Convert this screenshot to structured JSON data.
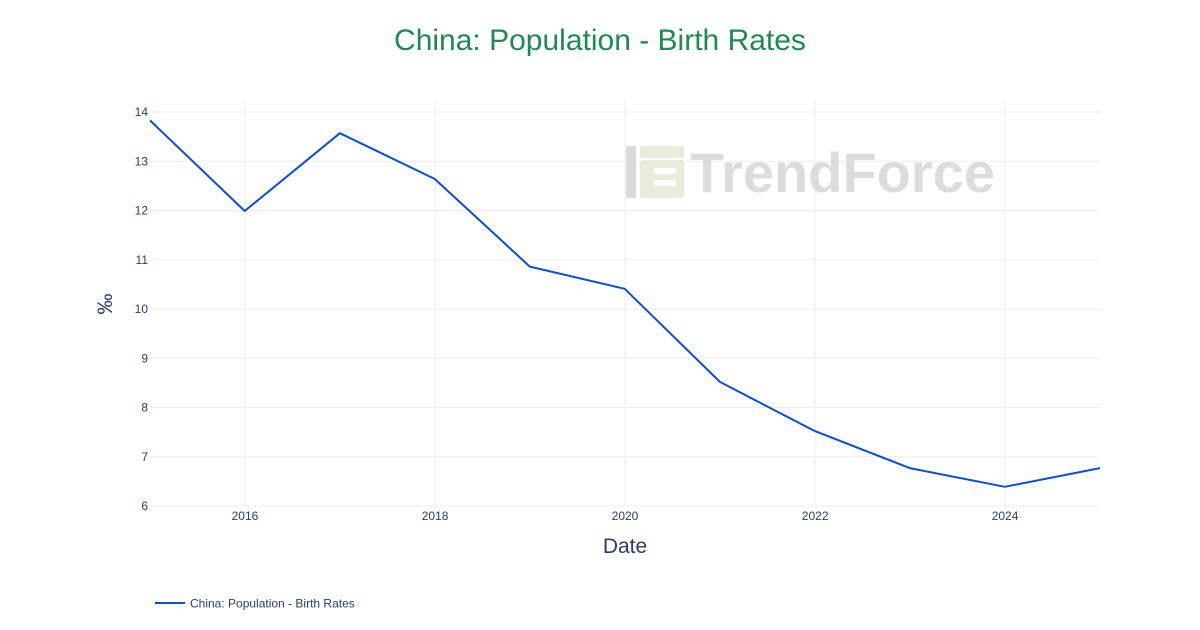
{
  "colors": {
    "title": "#1e8a4f",
    "line": "#0b4fd1",
    "axis_text": "#2a3f5f",
    "grid": "#eeeeee",
    "watermark_text": "#d9d9d9",
    "watermark_mark_light": "#e6ebd6",
    "watermark_mark_dark": "#d6d6d6"
  },
  "watermark": {
    "text": "TrendForce",
    "icon": "trendforce-logo-icon"
  },
  "chart_data": {
    "type": "line",
    "title": "China: Population - Birth Rates",
    "xlabel": "Date",
    "ylabel": "‰",
    "ylim": [
      6,
      14
    ],
    "y_ticks": [
      6,
      7,
      8,
      9,
      10,
      11,
      12,
      13,
      14
    ],
    "x_range": [
      "2015-01-01",
      "2024-12-31"
    ],
    "x_ticks": [
      {
        "date": "2016-01-01",
        "label": "2016"
      },
      {
        "date": "2018-01-01",
        "label": "2018"
      },
      {
        "date": "2020-01-01",
        "label": "2020"
      },
      {
        "date": "2022-01-01",
        "label": "2022"
      },
      {
        "date": "2024-01-01",
        "label": "2024"
      }
    ],
    "grid": true,
    "legend_position": "bottom-left",
    "series": [
      {
        "name": "China: Population - Birth Rates",
        "x": [
          "2015-01-01",
          "2015-12-31",
          "2016-12-31",
          "2017-12-31",
          "2018-12-31",
          "2019-12-31",
          "2020-12-31",
          "2021-12-31",
          "2022-12-31",
          "2023-12-31",
          "2024-12-31"
        ],
        "y": [
          13.83,
          11.99,
          13.57,
          12.64,
          10.86,
          10.41,
          8.52,
          7.52,
          6.77,
          6.39,
          6.77
        ]
      }
    ]
  }
}
